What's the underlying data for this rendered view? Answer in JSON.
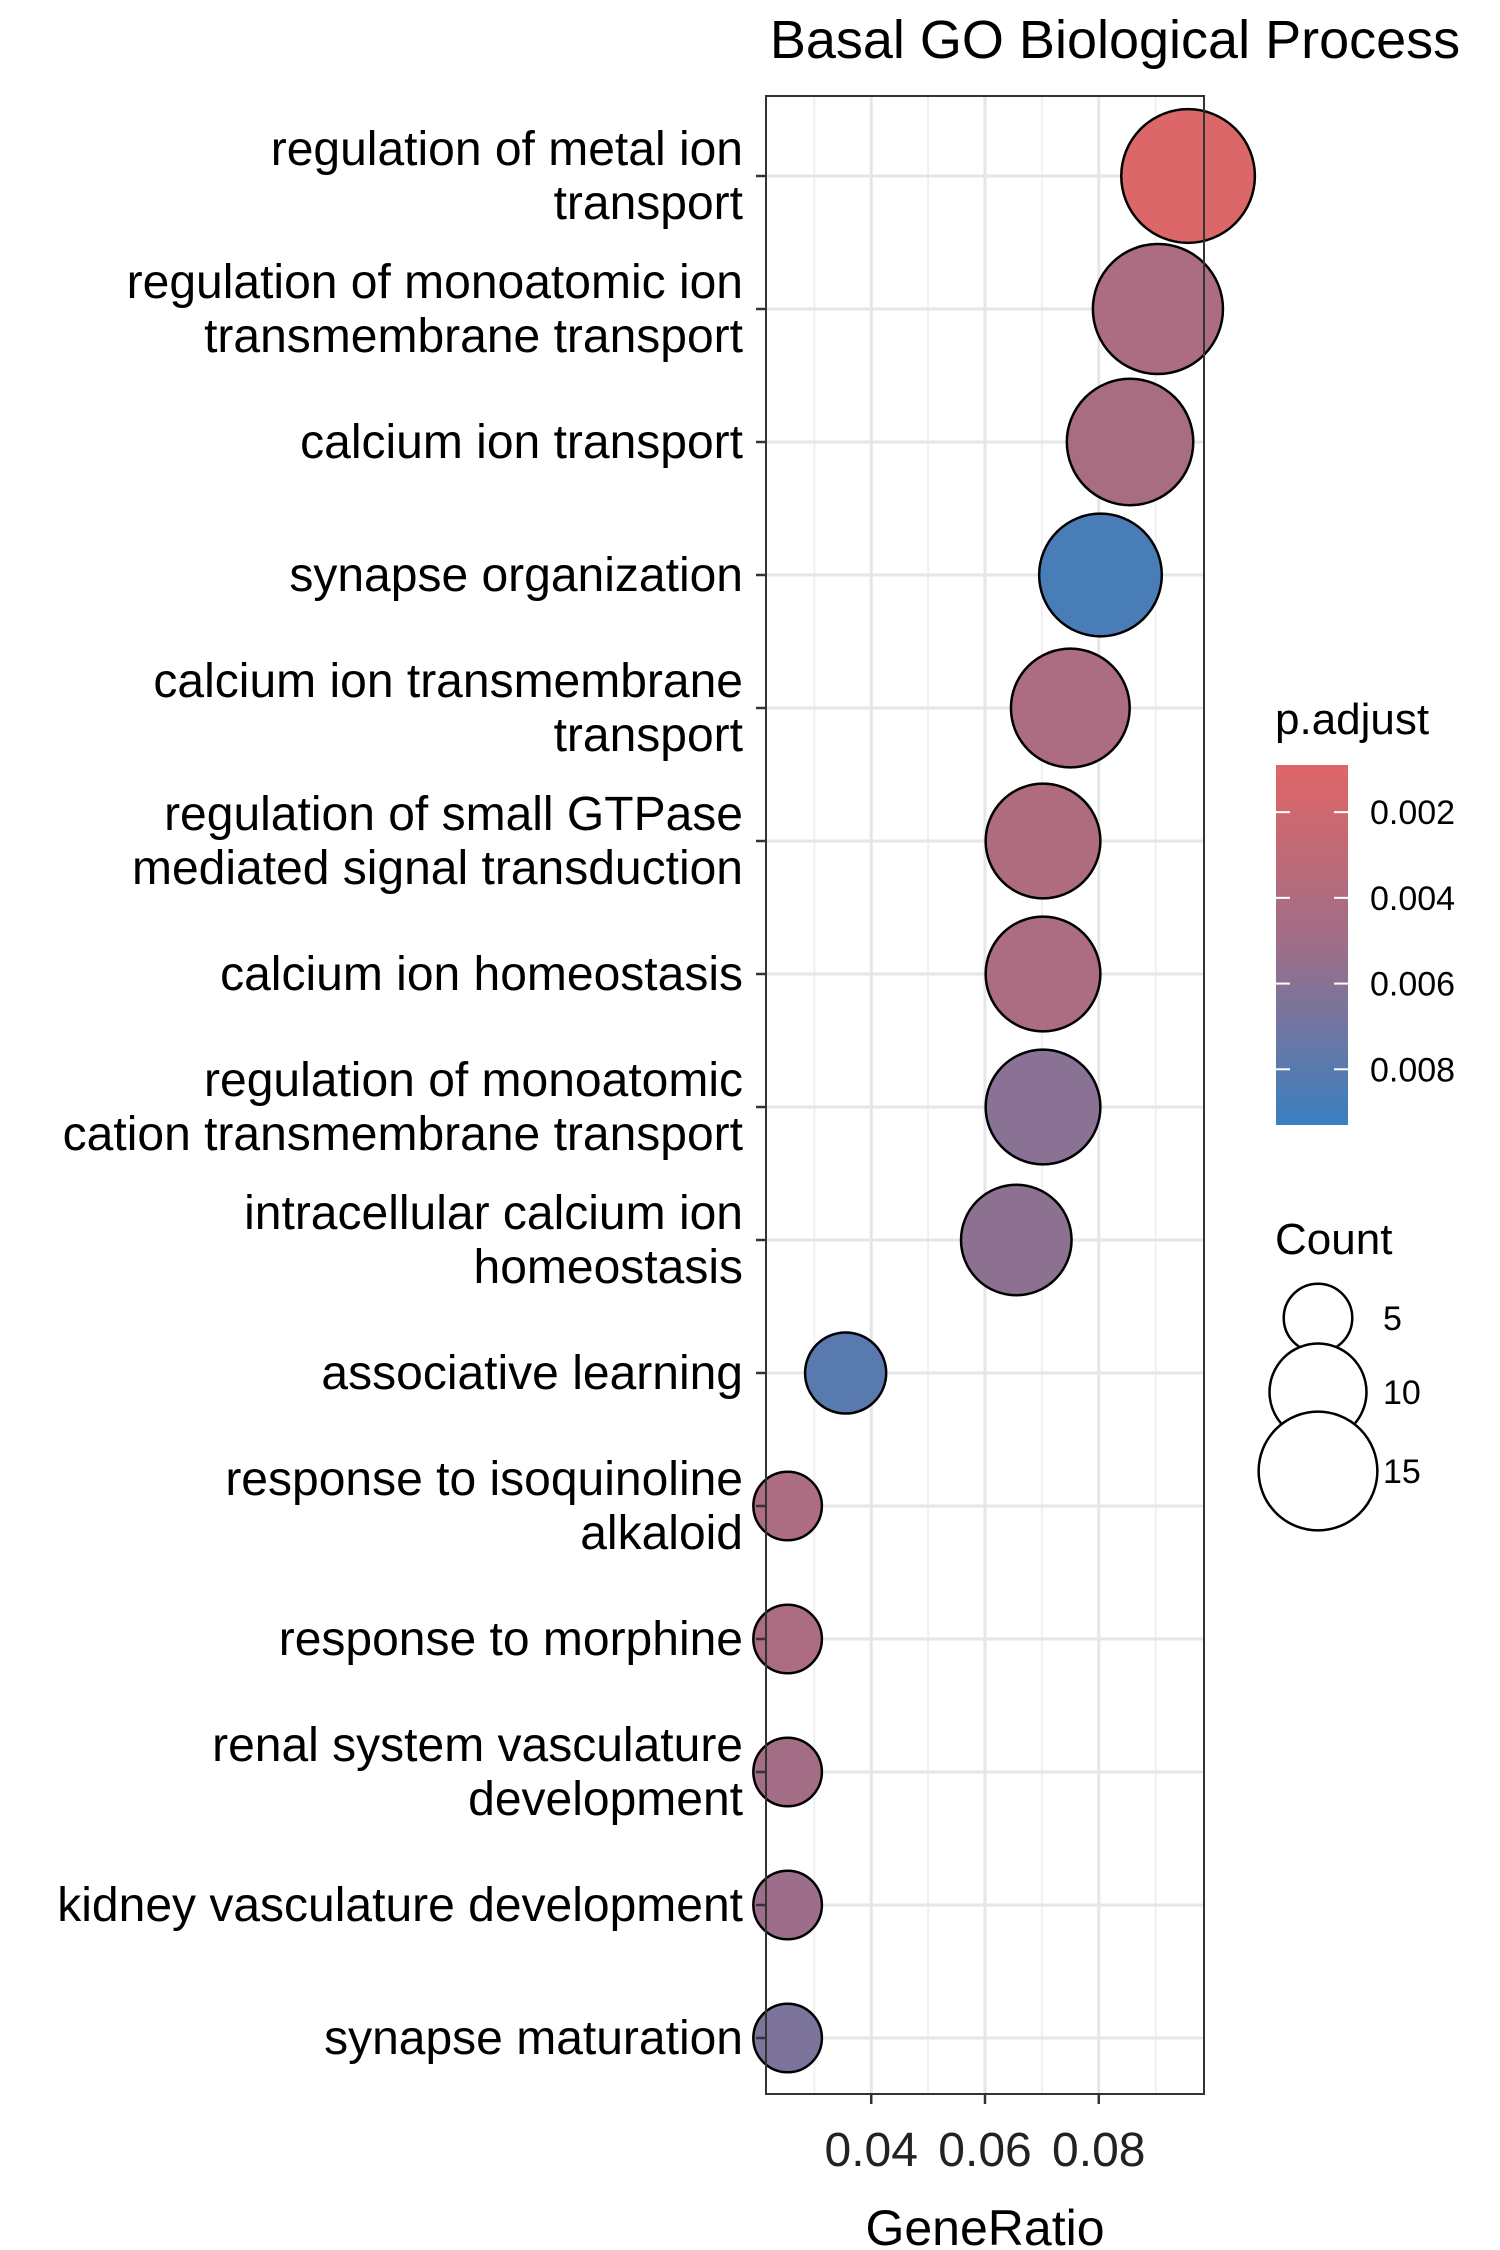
{
  "chart_data": {
    "type": "scatter",
    "title": "Basal GO Biological Process",
    "xlabel": "GeneRatio",
    "ylabel": "",
    "xlim": [
      0.0215,
      0.0985
    ],
    "xticks": [
      0.04,
      0.06,
      0.08
    ],
    "xtick_labels": [
      "0.04",
      "0.06",
      "0.08"
    ],
    "grid": true,
    "terms": [
      {
        "label": [
          "regulation of metal ion",
          "transport"
        ],
        "x": 0.0957,
        "count": 19,
        "p_adjust": 0.0012
      },
      {
        "label": [
          "regulation of monoatomic ion",
          "transmembrane transport"
        ],
        "x": 0.0904,
        "count": 18,
        "p_adjust": 0.0042
      },
      {
        "label": [
          "calcium ion transport"
        ],
        "x": 0.0855,
        "count": 17,
        "p_adjust": 0.0044
      },
      {
        "label": [
          "synapse organization"
        ],
        "x": 0.0803,
        "count": 16,
        "p_adjust": 0.0087
      },
      {
        "label": [
          "calcium ion transmembrane",
          "transport"
        ],
        "x": 0.075,
        "count": 15,
        "p_adjust": 0.0042
      },
      {
        "label": [
          "regulation of small GTPase",
          "mediated signal transduction"
        ],
        "x": 0.0702,
        "count": 14,
        "p_adjust": 0.004
      },
      {
        "label": [
          "calcium ion homeostasis"
        ],
        "x": 0.0702,
        "count": 14,
        "p_adjust": 0.0042
      },
      {
        "label": [
          "regulation of monoatomic",
          "cation transmembrane transport"
        ],
        "x": 0.0702,
        "count": 14,
        "p_adjust": 0.006
      },
      {
        "label": [
          "intracellular calcium ion",
          "homeostasis"
        ],
        "x": 0.0655,
        "count": 13,
        "p_adjust": 0.0058
      },
      {
        "label": [
          "associative learning"
        ],
        "x": 0.0355,
        "count": 7,
        "p_adjust": 0.008
      },
      {
        "label": [
          "response to isoquinoline",
          "alkaloid"
        ],
        "x": 0.0253,
        "count": 5,
        "p_adjust": 0.0042
      },
      {
        "label": [
          "response to morphine"
        ],
        "x": 0.0253,
        "count": 5,
        "p_adjust": 0.0042
      },
      {
        "label": [
          "renal system vasculature",
          "development"
        ],
        "x": 0.0253,
        "count": 5,
        "p_adjust": 0.0048
      },
      {
        "label": [
          "kidney vasculature development"
        ],
        "x": 0.0253,
        "count": 5,
        "p_adjust": 0.0052
      },
      {
        "label": [
          "synapse maturation"
        ],
        "x": 0.0253,
        "count": 5,
        "p_adjust": 0.0065
      }
    ],
    "color_legend": {
      "title": "p.adjust",
      "low_color": "#E06666",
      "high_color": "#3A7FC0",
      "range": [
        0.0009,
        0.0093
      ],
      "ticks": [
        0.002,
        0.004,
        0.006,
        0.008
      ],
      "tick_labels": [
        "0.002",
        "0.004",
        "0.006",
        "0.008"
      ]
    },
    "size_legend": {
      "title": "Count",
      "values": [
        5,
        10,
        15
      ],
      "labels": [
        "5",
        "10",
        "15"
      ]
    }
  }
}
